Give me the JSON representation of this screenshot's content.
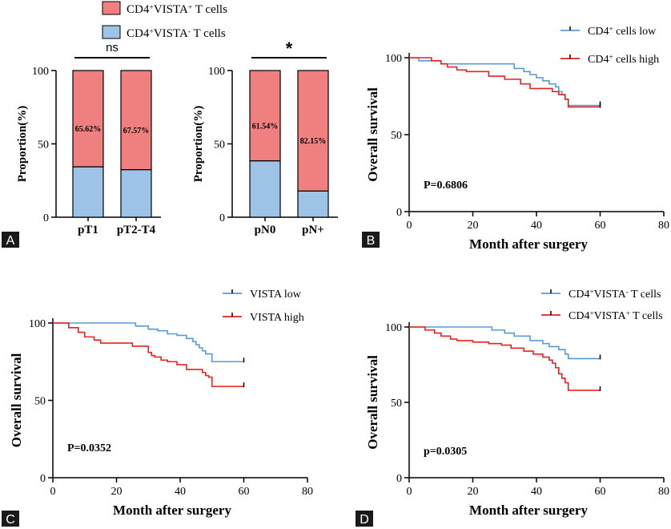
{
  "panels": {
    "A": {
      "letter": "A"
    },
    "B": {
      "letter": "B"
    },
    "C": {
      "letter": "C"
    },
    "D": {
      "letter": "D"
    }
  },
  "colors": {
    "red": "#f08080",
    "blue": "#9dc3e6",
    "km_blue": "#5b9bd5",
    "km_red": "#e8231f"
  },
  "chart_data": [
    {
      "panel": "A",
      "type": "bar",
      "stacked": true,
      "ylabel": "Proportion(%)",
      "ylim": [
        0,
        100
      ],
      "yticks": [
        "0",
        "50",
        "100"
      ],
      "legend": [
        {
          "sup_base": "CD4",
          "sup1": "+",
          "mid": "VISTA",
          "sup2": "+",
          "tail": " T cells",
          "color": "#f08080"
        },
        {
          "sup_base": "CD4",
          "sup1": "+",
          "mid": "VISTA",
          "sup2": "-",
          "tail": " T cells",
          "color": "#9dc3e6"
        }
      ],
      "groups": [
        {
          "categories": [
            "pT1",
            "pT2-T4"
          ],
          "vista_pos": [
            65.62,
            67.57
          ],
          "labels": [
            "65.62%",
            "67.57%"
          ],
          "significance": "ns"
        },
        {
          "categories": [
            "pN0",
            "pN+"
          ],
          "vista_pos": [
            61.54,
            82.15
          ],
          "labels": [
            "61.54%",
            "82.15%"
          ],
          "significance": "*"
        }
      ]
    },
    {
      "panel": "B",
      "type": "line",
      "xlabel": "Month after surgery",
      "ylabel": "Overall survival",
      "xlim": [
        0,
        80
      ],
      "ylim": [
        0,
        100
      ],
      "xticks": [
        "0",
        "20",
        "40",
        "60",
        "80"
      ],
      "yticks": [
        "0",
        "50",
        "100"
      ],
      "pvalue": "P=0.6806",
      "series": [
        {
          "legend": {
            "base": "CD4",
            "sup": "+",
            "tail": " cells low"
          },
          "color": "#5b9bd5",
          "x": [
            0,
            3,
            10,
            30,
            33,
            36,
            38,
            40,
            42,
            44,
            46,
            47,
            48,
            49,
            50,
            60
          ],
          "y": [
            100,
            98,
            96,
            96,
            93,
            91,
            89,
            87,
            85,
            83,
            81,
            78,
            76,
            73,
            69,
            69
          ]
        },
        {
          "legend": {
            "base": "CD4",
            "sup": "+",
            "tail": " cells high"
          },
          "color": "#e8231f",
          "x": [
            0,
            7,
            10,
            12,
            15,
            18,
            25,
            30,
            35,
            38,
            45,
            47,
            49,
            50,
            60
          ],
          "y": [
            100,
            98,
            96,
            94,
            92,
            91,
            88,
            86,
            83,
            80,
            78,
            76,
            73,
            68,
            68
          ]
        }
      ]
    },
    {
      "panel": "C",
      "type": "line",
      "xlabel": "Month after surgery",
      "ylabel": "Overall survival",
      "xlim": [
        0,
        80
      ],
      "ylim": [
        0,
        100
      ],
      "xticks": [
        "0",
        "20",
        "40",
        "60",
        "80"
      ],
      "yticks": [
        "0",
        "50",
        "100"
      ],
      "pvalue": "P=0.0352",
      "series": [
        {
          "legend": {
            "base": "VISTA low",
            "sup": "",
            "tail": ""
          },
          "color": "#5b9bd5",
          "x": [
            0,
            26,
            30,
            33,
            36,
            39,
            42,
            44,
            45,
            46,
            47,
            48,
            50,
            60
          ],
          "y": [
            100,
            98,
            96,
            95,
            93,
            92,
            90,
            88,
            86,
            84,
            82,
            80,
            75,
            75
          ]
        },
        {
          "legend": {
            "base": "VISTA high",
            "sup": "",
            "tail": ""
          },
          "color": "#e8231f",
          "x": [
            0,
            5,
            8,
            10,
            13,
            15,
            20,
            25,
            29,
            30,
            31,
            32,
            34,
            36,
            39,
            42,
            45,
            47,
            48,
            49,
            50,
            60
          ],
          "y": [
            100,
            97,
            94,
            91,
            89,
            87,
            87,
            85,
            85,
            81,
            79,
            78,
            76,
            75,
            73,
            70,
            70,
            68,
            66,
            65,
            59,
            59
          ]
        }
      ]
    },
    {
      "panel": "D",
      "type": "line",
      "xlabel": "Month after surgery",
      "ylabel": "Overall survival",
      "xlim": [
        0,
        80
      ],
      "ylim": [
        0,
        100
      ],
      "xticks": [
        "0",
        "20",
        "40",
        "60",
        "80"
      ],
      "yticks": [
        "0",
        "50",
        "100"
      ],
      "pvalue": "p=0.0305",
      "series": [
        {
          "legend": {
            "base": "CD4",
            "sup": "+",
            "mid": "VISTA",
            "sup2": "-",
            "tail": " T cells"
          },
          "color": "#5b9bd5",
          "x": [
            0,
            26,
            30,
            33,
            38,
            42,
            44,
            47,
            49,
            50,
            60
          ],
          "y": [
            100,
            98,
            96,
            94,
            91,
            89,
            87,
            85,
            82,
            79,
            79
          ]
        },
        {
          "legend": {
            "base": "CD4",
            "sup": "+",
            "mid": "VISTA",
            "sup2": "+",
            "tail": " T cells"
          },
          "color": "#e8231f",
          "x": [
            0,
            5,
            8,
            10,
            13,
            15,
            20,
            25,
            29,
            32,
            36,
            39,
            42,
            44,
            45,
            46,
            47,
            48,
            49,
            50,
            60
          ],
          "y": [
            100,
            98,
            96,
            94,
            92,
            91,
            90,
            89,
            88,
            86,
            84,
            82,
            80,
            78,
            76,
            73,
            69,
            66,
            63,
            58,
            58
          ]
        }
      ]
    }
  ]
}
